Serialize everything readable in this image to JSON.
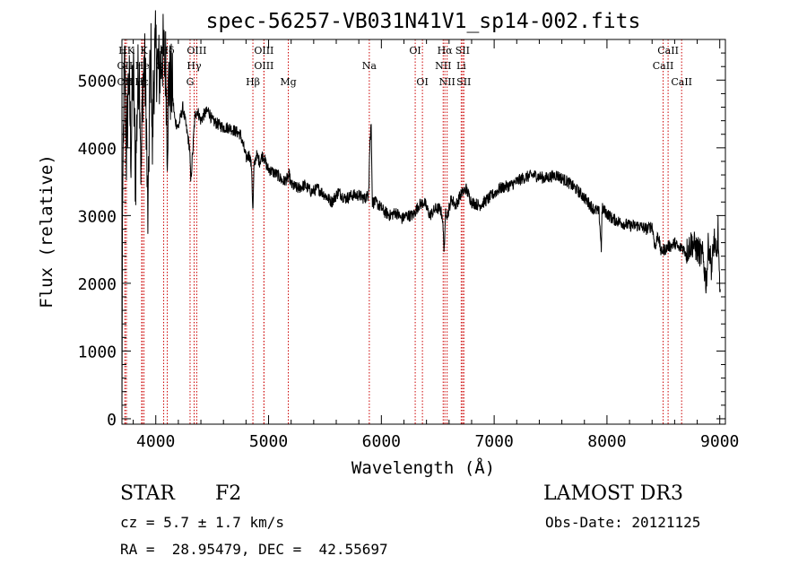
{
  "chart_data": {
    "type": "line",
    "title": "spec-56257-VB031N41V1_sp14-002.fits",
    "xlabel": "Wavelength (Å)",
    "ylabel": "Flux (relative)",
    "xlim": [
      3700,
      9050
    ],
    "ylim": [
      -80,
      5600
    ],
    "x_ticks": [
      4000,
      5000,
      6000,
      7000,
      8000,
      9000
    ],
    "y_ticks": [
      0,
      1000,
      2000,
      3000,
      4000,
      5000
    ],
    "grid": false,
    "line_color": "#000000",
    "marker_color": "#cc0000",
    "spectrum": {
      "x": [
        3700,
        3705,
        3715,
        3725,
        3740,
        3760,
        3780,
        3800,
        3820,
        3835,
        3850,
        3860,
        3870,
        3885,
        3900,
        3915,
        3925,
        3933,
        3945,
        3960,
        3968,
        3980,
        3995,
        4010,
        4030,
        4060,
        4090,
        4102,
        4115,
        4140,
        4170,
        4200,
        4240,
        4270,
        4300,
        4310,
        4330,
        4340,
        4350,
        4370,
        4400,
        4430,
        4470,
        4500,
        4550,
        4600,
        4650,
        4700,
        4750,
        4780,
        4800,
        4830,
        4850,
        4861,
        4870,
        4890,
        4920,
        4950,
        4990,
        5030,
        5080,
        5130,
        5170,
        5183,
        5200,
        5260,
        5320,
        5380,
        5440,
        5500,
        5560,
        5620,
        5680,
        5740,
        5800,
        5850,
        5880,
        5890,
        5895,
        5900,
        5910,
        5920,
        5940,
        5980,
        6030,
        6080,
        6130,
        6180,
        6220,
        6280,
        6330,
        6380,
        6430,
        6480,
        6520,
        6540,
        6555,
        6563,
        6570,
        6585,
        6620,
        6660,
        6700,
        6750,
        6800,
        6870,
        6950,
        7050,
        7150,
        7250,
        7350,
        7450,
        7550,
        7650,
        7720,
        7780,
        7830,
        7880,
        7930,
        7950,
        7955,
        7960,
        7990,
        8050,
        8120,
        8200,
        8280,
        8350,
        8400,
        8430,
        8450,
        8480,
        8498,
        8520,
        8542,
        8570,
        8600,
        8640,
        8662,
        8700,
        8750,
        8800,
        8850,
        8880,
        8900,
        8930,
        8950,
        8970,
        8985,
        9000,
        9005
      ],
      "y": [
        0,
        3000,
        4500,
        5200,
        3900,
        5100,
        4000,
        5200,
        3500,
        4600,
        5300,
        4800,
        3500,
        5000,
        5200,
        4600,
        3200,
        2900,
        4900,
        5350,
        3800,
        5000,
        5400,
        5300,
        5100,
        5400,
        5200,
        4100,
        5000,
        4900,
        4400,
        4300,
        4600,
        4300,
        4000,
        3500,
        4000,
        4300,
        4500,
        4550,
        4400,
        4500,
        4550,
        4400,
        4350,
        4300,
        4300,
        4250,
        4200,
        4000,
        3850,
        3900,
        3700,
        3000,
        3700,
        3900,
        3800,
        3900,
        3700,
        3650,
        3600,
        3500,
        3550,
        3600,
        3450,
        3400,
        3450,
        3350,
        3400,
        3300,
        3200,
        3350,
        3250,
        3300,
        3300,
        3250,
        3300,
        3500,
        3900,
        4100,
        4400,
        3200,
        3200,
        3150,
        3050,
        3000,
        3050,
        2950,
        3000,
        3000,
        3150,
        3200,
        3000,
        3100,
        3100,
        3000,
        2550,
        2650,
        3100,
        3000,
        3250,
        3150,
        3300,
        3400,
        3200,
        3150,
        3250,
        3400,
        3450,
        3550,
        3600,
        3550,
        3600,
        3500,
        3400,
        3300,
        3200,
        3100,
        3050,
        2500,
        3000,
        3100,
        3050,
        2950,
        2900,
        2850,
        2850,
        2800,
        2850,
        2500,
        2750,
        2450,
        2500,
        2500,
        2550,
        2550,
        2600,
        2500,
        2550,
        2450,
        2600,
        2500,
        2400,
        2000,
        2600,
        2200,
        2700,
        2300,
        2800,
        1800,
        1700
      ]
    },
    "lines": [
      {
        "label": "HK",
        "x": 3740,
        "row": 0
      },
      {
        "label": "OII",
        "x": 3727,
        "row": 1
      },
      {
        "label": "OII",
        "x": 3727,
        "row": 2
      },
      {
        "label": "K",
        "x": 3895,
        "row": 0
      },
      {
        "label": "He",
        "x": 3880,
        "row": 1
      },
      {
        "label": "Hε",
        "x": 3875,
        "row": 2
      },
      {
        "label": "Hδ",
        "x": 4102,
        "row": 0
      },
      {
        "label": "OII",
        "x": 4070,
        "row": 1
      },
      {
        "label": "OIII",
        "x": 4363,
        "row": 0
      },
      {
        "label": "Hγ",
        "x": 4340,
        "row": 1
      },
      {
        "label": "G",
        "x": 4304,
        "row": 2
      },
      {
        "label": "Hβ",
        "x": 4861,
        "row": 2
      },
      {
        "label": "OIII",
        "x": 4959,
        "row": 0
      },
      {
        "label": "OIII",
        "x": 4959,
        "row": 1
      },
      {
        "label": "Mg",
        "x": 5175,
        "row": 2
      },
      {
        "label": "Na",
        "x": 5893,
        "row": 1
      },
      {
        "label": "OI",
        "x": 6300,
        "row": 0
      },
      {
        "label": "OI",
        "x": 6364,
        "row": 2
      },
      {
        "label": "Hα",
        "x": 6563,
        "row": 0
      },
      {
        "label": "SII",
        "x": 6720,
        "row": 0
      },
      {
        "label": "NII",
        "x": 6548,
        "row": 1
      },
      {
        "label": "Li",
        "x": 6708,
        "row": 1
      },
      {
        "label": "NII",
        "x": 6583,
        "row": 2
      },
      {
        "label": "SII",
        "x": 6731,
        "row": 2
      },
      {
        "label": "CaII",
        "x": 8542,
        "row": 0
      },
      {
        "label": "CaII",
        "x": 8498,
        "row": 1
      },
      {
        "label": "CaII",
        "x": 8662,
        "row": 2
      }
    ]
  },
  "info": {
    "object_class": "STAR",
    "subclass": "F2",
    "survey": "LAMOST DR3",
    "cz": "cz = 5.7 ± 1.7 km/s",
    "obs_date": "Obs-Date: 20121125",
    "coords": "RA =  28.95479, DEC =  42.55697"
  }
}
